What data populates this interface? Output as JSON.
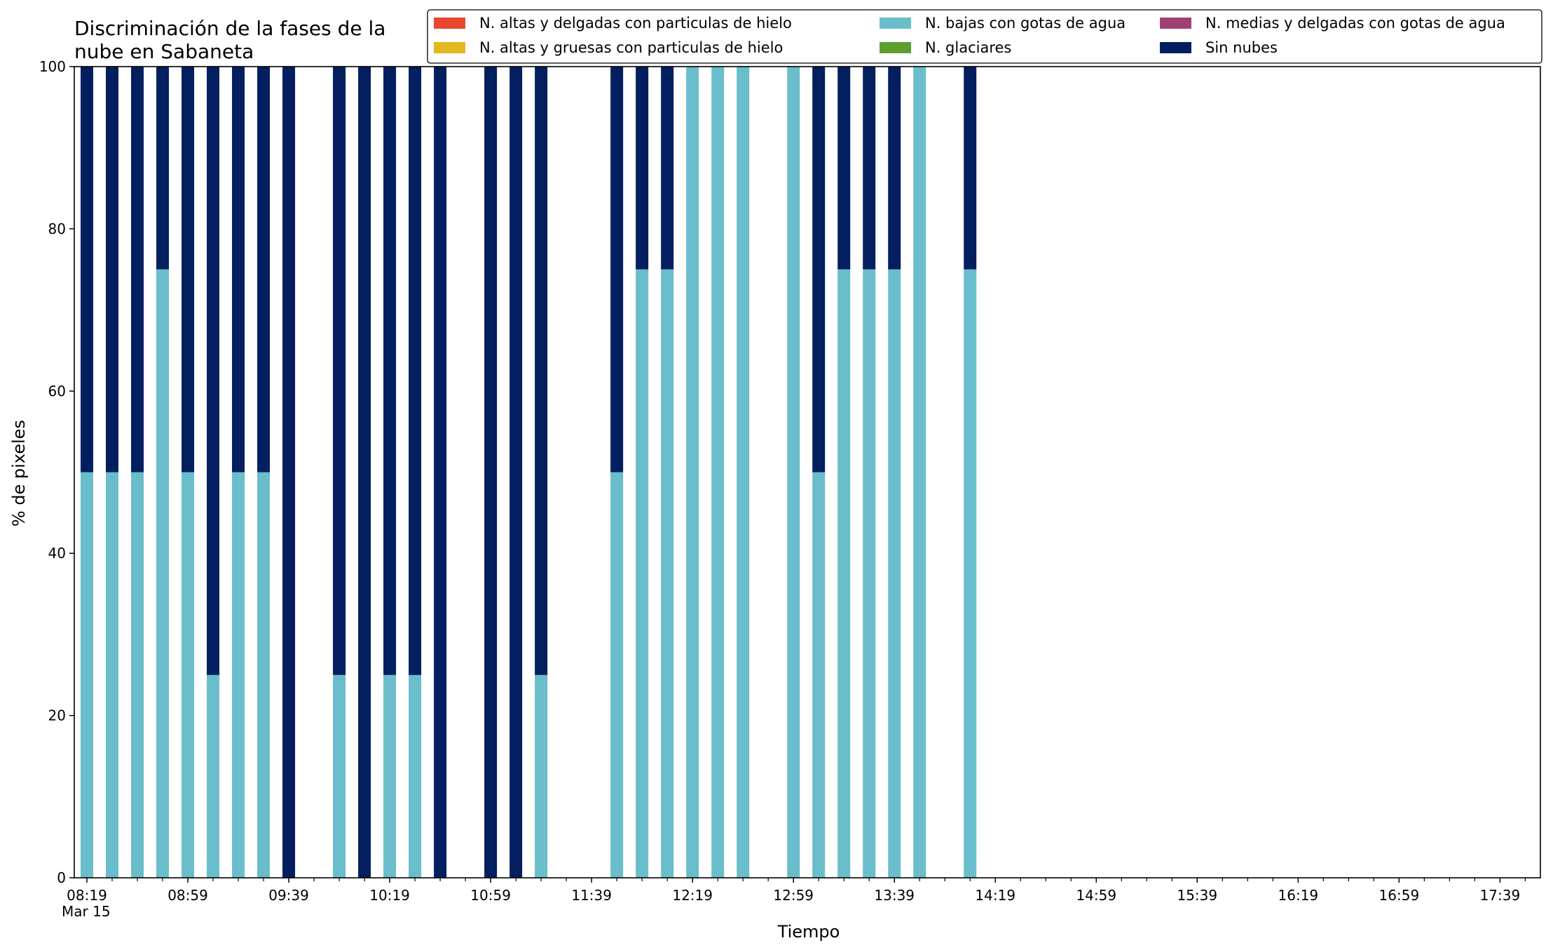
{
  "chart_data": {
    "type": "bar",
    "stacked": true,
    "title": "Discriminación de la fases de la nube en Sabaneta",
    "title_lines": [
      "Discriminación de la fases de la",
      "nube en Sabaneta"
    ],
    "xlabel": "Tiempo",
    "ylabel": "% de pixeles",
    "ylim": [
      0,
      100
    ],
    "yticks": [
      0,
      20,
      40,
      60,
      80,
      100
    ],
    "xlim": [
      "08:14",
      "17:55"
    ],
    "x_date_label": "Mar 15",
    "x_tick_labels": [
      "08:19",
      "08:59",
      "09:39",
      "10:19",
      "10:59",
      "11:39",
      "12:19",
      "12:59",
      "13:39",
      "14:19",
      "14:59",
      "15:39",
      "16:19",
      "16:59",
      "17:39"
    ],
    "x_minor_step_minutes": 10,
    "bar_width_minutes": 5,
    "grid": false,
    "legend_position": "top-right",
    "legend_columns": 3,
    "series": [
      {
        "name": "N. altas y delgadas con particulas de hielo",
        "color": "#e8472e"
      },
      {
        "name": "N. altas y gruesas con particulas de hielo",
        "color": "#e2b91e"
      },
      {
        "name": "N. bajas con gotas de agua",
        "color": "#6abdca"
      },
      {
        "name": "N. glaciares",
        "color": "#5d9e2f"
      },
      {
        "name": "N. medias y delgadas con gotas de agua",
        "color": "#a04174"
      },
      {
        "name": "Sin nubes",
        "color": "#031f5f"
      }
    ],
    "observations": [
      {
        "x": "08:19",
        "bajas": 50,
        "sin_nubes": 50
      },
      {
        "x": "08:29",
        "bajas": 50,
        "sin_nubes": 50
      },
      {
        "x": "08:39",
        "bajas": 50,
        "sin_nubes": 50
      },
      {
        "x": "08:49",
        "bajas": 75,
        "sin_nubes": 25
      },
      {
        "x": "08:59",
        "bajas": 50,
        "sin_nubes": 50
      },
      {
        "x": "09:09",
        "bajas": 25,
        "sin_nubes": 75
      },
      {
        "x": "09:19",
        "bajas": 50,
        "sin_nubes": 50
      },
      {
        "x": "09:29",
        "bajas": 50,
        "sin_nubes": 50
      },
      {
        "x": "09:39",
        "bajas": 0,
        "sin_nubes": 100
      },
      {
        "x": "09:59",
        "bajas": 25,
        "sin_nubes": 75
      },
      {
        "x": "10:09",
        "bajas": 0,
        "sin_nubes": 100
      },
      {
        "x": "10:19",
        "bajas": 25,
        "sin_nubes": 75
      },
      {
        "x": "10:29",
        "bajas": 25,
        "sin_nubes": 75
      },
      {
        "x": "10:39",
        "bajas": 0,
        "sin_nubes": 100
      },
      {
        "x": "10:59",
        "bajas": 0,
        "sin_nubes": 100
      },
      {
        "x": "11:09",
        "bajas": 0,
        "sin_nubes": 100
      },
      {
        "x": "11:19",
        "bajas": 25,
        "sin_nubes": 75
      },
      {
        "x": "11:49",
        "bajas": 50,
        "sin_nubes": 50
      },
      {
        "x": "11:59",
        "bajas": 75,
        "sin_nubes": 25
      },
      {
        "x": "12:09",
        "bajas": 75,
        "sin_nubes": 25
      },
      {
        "x": "12:19",
        "bajas": 100,
        "sin_nubes": 0
      },
      {
        "x": "12:29",
        "bajas": 100,
        "sin_nubes": 0
      },
      {
        "x": "12:39",
        "bajas": 100,
        "sin_nubes": 0
      },
      {
        "x": "12:59",
        "bajas": 100,
        "sin_nubes": 0
      },
      {
        "x": "13:09",
        "bajas": 50,
        "sin_nubes": 50
      },
      {
        "x": "13:19",
        "bajas": 75,
        "sin_nubes": 25
      },
      {
        "x": "13:29",
        "bajas": 75,
        "sin_nubes": 25
      },
      {
        "x": "13:39",
        "bajas": 75,
        "sin_nubes": 25
      },
      {
        "x": "13:49",
        "bajas": 100,
        "sin_nubes": 0
      },
      {
        "x": "14:09",
        "bajas": 75,
        "sin_nubes": 25
      }
    ]
  }
}
